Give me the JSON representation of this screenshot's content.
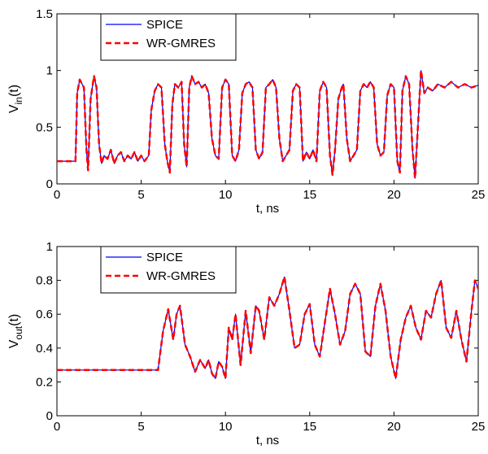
{
  "chart_data": [
    {
      "type": "line",
      "xlabel": "t, ns",
      "ylabel_main": "V",
      "ylabel_sub": "in",
      "ylabel_tail": "(t)",
      "xlim": [
        0,
        25
      ],
      "ylim": [
        0,
        1.5
      ],
      "xticks": [
        0,
        5,
        10,
        15,
        20,
        25
      ],
      "yticks": [
        0,
        0.5,
        1,
        1.5
      ],
      "xtick_labels": [
        "0",
        "5",
        "10",
        "15",
        "20",
        "25"
      ],
      "ytick_labels": [
        "0",
        "0.5",
        "1",
        "1.5"
      ],
      "legend_position": "top-left",
      "series": [
        {
          "name": "SPICE",
          "color": "#0000ff",
          "style": "solid",
          "x": [
            0,
            1.1,
            1.2,
            1.35,
            1.6,
            1.75,
            1.85,
            2.0,
            2.2,
            2.35,
            2.5,
            2.65,
            2.8,
            3.0,
            3.2,
            3.4,
            3.6,
            3.8,
            4.0,
            4.2,
            4.4,
            4.6,
            4.8,
            5.0,
            5.2,
            5.45,
            5.6,
            5.8,
            6.0,
            6.2,
            6.4,
            6.55,
            6.7,
            6.85,
            7.0,
            7.2,
            7.4,
            7.55,
            7.7,
            7.85,
            8.0,
            8.2,
            8.4,
            8.6,
            8.8,
            9.0,
            9.2,
            9.4,
            9.6,
            9.8,
            10.0,
            10.2,
            10.4,
            10.6,
            10.8,
            11.0,
            11.2,
            11.4,
            11.6,
            11.8,
            12.0,
            12.2,
            12.4,
            12.6,
            12.8,
            13.0,
            13.2,
            13.4,
            13.6,
            13.8,
            14.0,
            14.2,
            14.4,
            14.6,
            14.8,
            15.0,
            15.2,
            15.4,
            15.6,
            15.8,
            16.0,
            16.2,
            16.35,
            16.5,
            16.7,
            16.9,
            17.0,
            17.2,
            17.4,
            17.6,
            17.8,
            18.0,
            18.2,
            18.4,
            18.6,
            18.8,
            19.0,
            19.2,
            19.4,
            19.6,
            19.8,
            20.0,
            20.2,
            20.35,
            20.5,
            20.7,
            20.9,
            21.1,
            21.25,
            21.4,
            21.6,
            21.8,
            22.0,
            22.3,
            22.6,
            23.0,
            23.4,
            23.8,
            24.2,
            24.6,
            25.0
          ],
          "y": [
            0.2,
            0.2,
            0.8,
            0.92,
            0.85,
            0.3,
            0.12,
            0.75,
            0.95,
            0.85,
            0.35,
            0.18,
            0.25,
            0.22,
            0.3,
            0.18,
            0.25,
            0.28,
            0.2,
            0.25,
            0.22,
            0.28,
            0.2,
            0.25,
            0.2,
            0.25,
            0.65,
            0.82,
            0.88,
            0.85,
            0.35,
            0.2,
            0.1,
            0.7,
            0.88,
            0.85,
            0.9,
            0.35,
            0.15,
            0.85,
            0.95,
            0.88,
            0.9,
            0.85,
            0.88,
            0.8,
            0.4,
            0.25,
            0.22,
            0.85,
            0.92,
            0.88,
            0.25,
            0.2,
            0.3,
            0.8,
            0.88,
            0.9,
            0.85,
            0.3,
            0.22,
            0.28,
            0.85,
            0.88,
            0.92,
            0.85,
            0.4,
            0.2,
            0.25,
            0.3,
            0.82,
            0.88,
            0.85,
            0.2,
            0.28,
            0.22,
            0.3,
            0.2,
            0.82,
            0.9,
            0.85,
            0.25,
            0.08,
            0.3,
            0.75,
            0.85,
            0.88,
            0.4,
            0.2,
            0.25,
            0.3,
            0.82,
            0.88,
            0.85,
            0.9,
            0.85,
            0.35,
            0.25,
            0.28,
            0.78,
            0.88,
            0.85,
            0.2,
            0.1,
            0.82,
            0.95,
            0.88,
            0.3,
            0.05,
            0.45,
            1.0,
            0.8,
            0.85,
            0.82,
            0.88,
            0.85,
            0.9,
            0.85,
            0.88,
            0.85,
            0.87
          ]
        },
        {
          "name": "WR-GMRES",
          "color": "#ff0000",
          "style": "dashed",
          "x": [
            0,
            1.1,
            1.2,
            1.35,
            1.6,
            1.75,
            1.85,
            2.0,
            2.2,
            2.35,
            2.5,
            2.65,
            2.8,
            3.0,
            3.2,
            3.4,
            3.6,
            3.8,
            4.0,
            4.2,
            4.4,
            4.6,
            4.8,
            5.0,
            5.2,
            5.45,
            5.6,
            5.8,
            6.0,
            6.2,
            6.4,
            6.55,
            6.7,
            6.85,
            7.0,
            7.2,
            7.4,
            7.55,
            7.7,
            7.85,
            8.0,
            8.2,
            8.4,
            8.6,
            8.8,
            9.0,
            9.2,
            9.4,
            9.6,
            9.8,
            10.0,
            10.2,
            10.4,
            10.6,
            10.8,
            11.0,
            11.2,
            11.4,
            11.6,
            11.8,
            12.0,
            12.2,
            12.4,
            12.6,
            12.8,
            13.0,
            13.2,
            13.4,
            13.6,
            13.8,
            14.0,
            14.2,
            14.4,
            14.6,
            14.8,
            15.0,
            15.2,
            15.4,
            15.6,
            15.8,
            16.0,
            16.2,
            16.35,
            16.5,
            16.7,
            16.9,
            17.0,
            17.2,
            17.4,
            17.6,
            17.8,
            18.0,
            18.2,
            18.4,
            18.6,
            18.8,
            19.0,
            19.2,
            19.4,
            19.6,
            19.8,
            20.0,
            20.2,
            20.35,
            20.5,
            20.7,
            20.9,
            21.1,
            21.25,
            21.4,
            21.6,
            21.8,
            22.0,
            22.3,
            22.6,
            23.0,
            23.4,
            23.8,
            24.2,
            24.6,
            25.0
          ],
          "y": [
            0.2,
            0.2,
            0.8,
            0.92,
            0.85,
            0.3,
            0.12,
            0.75,
            0.95,
            0.85,
            0.35,
            0.18,
            0.25,
            0.22,
            0.3,
            0.18,
            0.25,
            0.28,
            0.2,
            0.25,
            0.22,
            0.28,
            0.2,
            0.25,
            0.2,
            0.25,
            0.65,
            0.82,
            0.88,
            0.85,
            0.35,
            0.2,
            0.1,
            0.7,
            0.88,
            0.85,
            0.9,
            0.35,
            0.15,
            0.85,
            0.95,
            0.88,
            0.9,
            0.85,
            0.88,
            0.8,
            0.4,
            0.25,
            0.22,
            0.85,
            0.92,
            0.88,
            0.25,
            0.2,
            0.3,
            0.8,
            0.88,
            0.9,
            0.85,
            0.3,
            0.22,
            0.28,
            0.85,
            0.88,
            0.92,
            0.85,
            0.4,
            0.2,
            0.25,
            0.3,
            0.82,
            0.88,
            0.85,
            0.2,
            0.28,
            0.22,
            0.3,
            0.2,
            0.82,
            0.9,
            0.85,
            0.25,
            0.08,
            0.3,
            0.75,
            0.85,
            0.88,
            0.4,
            0.2,
            0.25,
            0.3,
            0.82,
            0.88,
            0.85,
            0.9,
            0.85,
            0.35,
            0.25,
            0.28,
            0.78,
            0.88,
            0.85,
            0.2,
            0.1,
            0.82,
            0.95,
            0.88,
            0.3,
            0.05,
            0.45,
            1.0,
            0.8,
            0.85,
            0.82,
            0.88,
            0.85,
            0.9,
            0.85,
            0.88,
            0.85,
            0.87
          ]
        }
      ]
    },
    {
      "type": "line",
      "xlabel": "t, ns",
      "ylabel_main": "V",
      "ylabel_sub": "out",
      "ylabel_tail": "(t)",
      "xlim": [
        0,
        25
      ],
      "ylim": [
        0,
        1
      ],
      "xticks": [
        0,
        5,
        10,
        15,
        20,
        25
      ],
      "yticks": [
        0,
        0.2,
        0.4,
        0.6,
        0.8,
        1
      ],
      "xtick_labels": [
        "0",
        "5",
        "10",
        "15",
        "20",
        "25"
      ],
      "ytick_labels": [
        "0",
        "0.2",
        "0.4",
        "0.6",
        "0.8",
        "1"
      ],
      "legend_position": "top-left",
      "series": [
        {
          "name": "SPICE",
          "color": "#0000ff",
          "style": "solid",
          "x": [
            0,
            6.0,
            6.3,
            6.6,
            6.9,
            7.1,
            7.3,
            7.6,
            7.9,
            8.2,
            8.5,
            8.8,
            9.0,
            9.2,
            9.4,
            9.6,
            9.8,
            10.0,
            10.2,
            10.4,
            10.6,
            10.9,
            11.2,
            11.5,
            11.8,
            12.0,
            12.3,
            12.6,
            12.9,
            13.2,
            13.5,
            13.8,
            14.1,
            14.4,
            14.7,
            15.0,
            15.3,
            15.6,
            15.9,
            16.2,
            16.5,
            16.8,
            17.1,
            17.4,
            17.7,
            18.0,
            18.3,
            18.6,
            18.9,
            19.2,
            19.5,
            19.8,
            20.1,
            20.4,
            20.7,
            21.0,
            21.3,
            21.6,
            21.9,
            22.2,
            22.5,
            22.8,
            23.1,
            23.4,
            23.7,
            24.0,
            24.3,
            24.6,
            24.8,
            25.0
          ],
          "y": [
            0.27,
            0.27,
            0.5,
            0.63,
            0.45,
            0.6,
            0.65,
            0.42,
            0.35,
            0.26,
            0.33,
            0.28,
            0.33,
            0.25,
            0.22,
            0.32,
            0.29,
            0.22,
            0.52,
            0.45,
            0.6,
            0.3,
            0.62,
            0.37,
            0.65,
            0.62,
            0.45,
            0.7,
            0.65,
            0.72,
            0.82,
            0.62,
            0.4,
            0.42,
            0.6,
            0.66,
            0.42,
            0.35,
            0.55,
            0.75,
            0.6,
            0.42,
            0.5,
            0.72,
            0.78,
            0.72,
            0.38,
            0.35,
            0.65,
            0.78,
            0.62,
            0.35,
            0.22,
            0.45,
            0.58,
            0.65,
            0.52,
            0.45,
            0.62,
            0.58,
            0.72,
            0.8,
            0.52,
            0.46,
            0.62,
            0.45,
            0.32,
            0.62,
            0.8,
            0.75
          ]
        },
        {
          "name": "WR-GMRES",
          "color": "#ff0000",
          "style": "dashed",
          "x": [
            0,
            6.0,
            6.3,
            6.6,
            6.9,
            7.1,
            7.3,
            7.6,
            7.9,
            8.2,
            8.5,
            8.8,
            9.0,
            9.2,
            9.4,
            9.6,
            9.8,
            10.0,
            10.2,
            10.4,
            10.6,
            10.9,
            11.2,
            11.5,
            11.8,
            12.0,
            12.3,
            12.6,
            12.9,
            13.2,
            13.5,
            13.8,
            14.1,
            14.4,
            14.7,
            15.0,
            15.3,
            15.6,
            15.9,
            16.2,
            16.5,
            16.8,
            17.1,
            17.4,
            17.7,
            18.0,
            18.3,
            18.6,
            18.9,
            19.2,
            19.5,
            19.8,
            20.1,
            20.4,
            20.7,
            21.0,
            21.3,
            21.6,
            21.9,
            22.2,
            22.5,
            22.8,
            23.1,
            23.4,
            23.7,
            24.0,
            24.3,
            24.6,
            24.8,
            25.0
          ],
          "y": [
            0.27,
            0.27,
            0.5,
            0.63,
            0.45,
            0.6,
            0.65,
            0.42,
            0.35,
            0.26,
            0.33,
            0.28,
            0.33,
            0.25,
            0.22,
            0.32,
            0.29,
            0.22,
            0.52,
            0.45,
            0.6,
            0.3,
            0.62,
            0.37,
            0.65,
            0.62,
            0.45,
            0.7,
            0.65,
            0.72,
            0.82,
            0.62,
            0.4,
            0.42,
            0.6,
            0.66,
            0.42,
            0.35,
            0.55,
            0.75,
            0.6,
            0.42,
            0.5,
            0.72,
            0.78,
            0.72,
            0.38,
            0.35,
            0.65,
            0.78,
            0.62,
            0.35,
            0.22,
            0.45,
            0.58,
            0.65,
            0.52,
            0.45,
            0.62,
            0.58,
            0.72,
            0.8,
            0.52,
            0.46,
            0.62,
            0.45,
            0.32,
            0.62,
            0.8,
            0.75
          ]
        }
      ]
    }
  ]
}
